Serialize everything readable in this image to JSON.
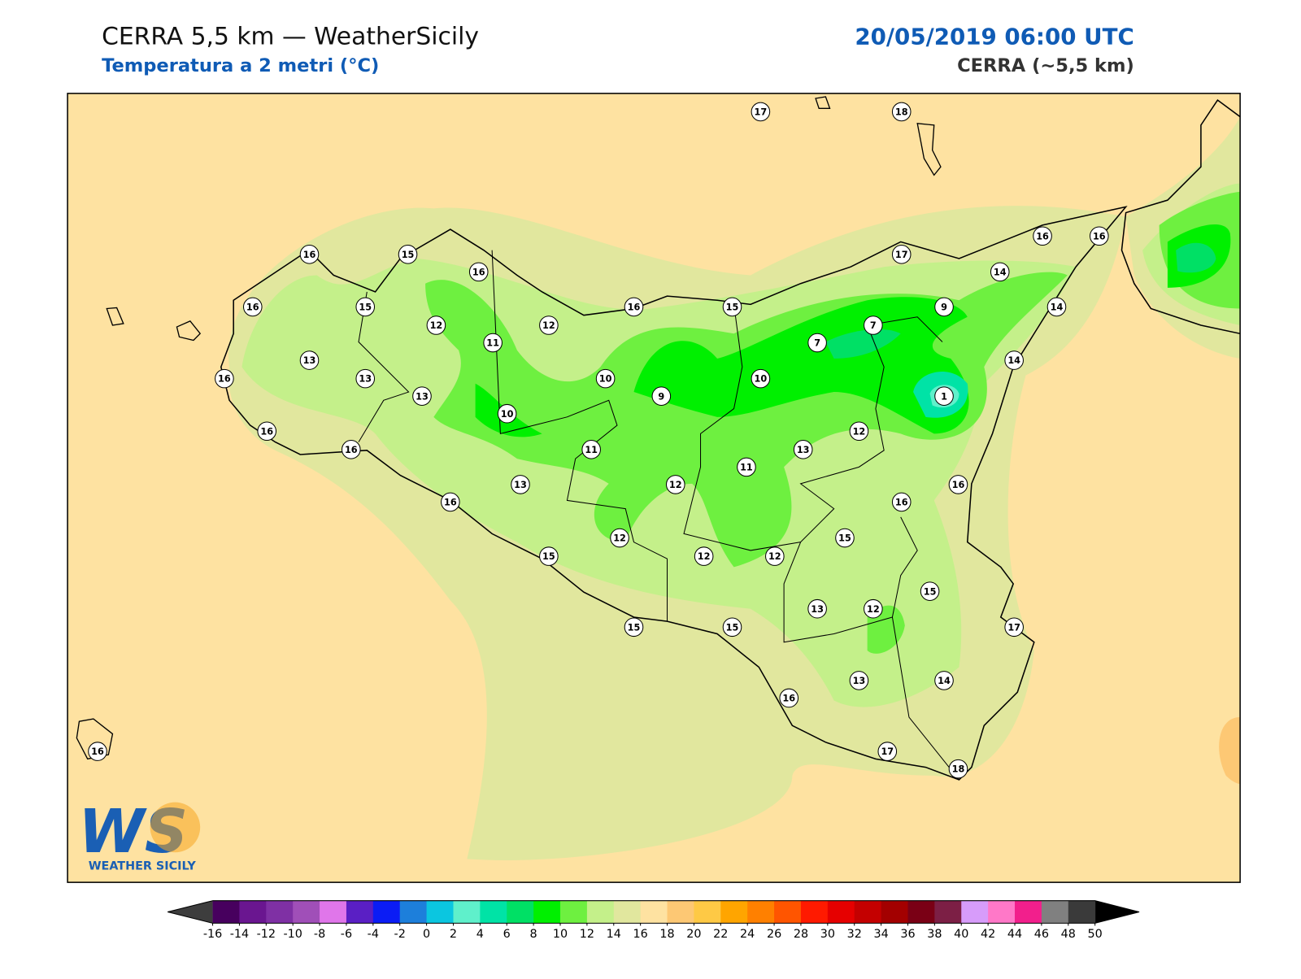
{
  "header": {
    "title": "CERRA 5,5 km — WeatherSicily",
    "subtitle": "Temperatura a 2 metri (°C)",
    "date": "20/05/2019 06:00 UTC",
    "model": "CERRA (~5,5 km)"
  },
  "map": {
    "stations": [
      17,
      18,
      16,
      15,
      16,
      17,
      16,
      16,
      14,
      16,
      15,
      16,
      15,
      9,
      14,
      12,
      12,
      7,
      11,
      7,
      13,
      14,
      16,
      13,
      10,
      10,
      13,
      9,
      1,
      10,
      16,
      12,
      16,
      11,
      13,
      11,
      13,
      12,
      16,
      16,
      16,
      15,
      12,
      15,
      12,
      12,
      15,
      13,
      12,
      15,
      15,
      17,
      13,
      14,
      16,
      17,
      18,
      16
    ]
  },
  "logo": {
    "mark": "WS",
    "text": "WEATHER SICILY"
  },
  "colorbar": {
    "ticks": [
      -16,
      -14,
      -12,
      -10,
      -8,
      -6,
      -4,
      -2,
      0,
      2,
      4,
      6,
      8,
      10,
      12,
      14,
      16,
      18,
      20,
      22,
      24,
      26,
      28,
      30,
      32,
      34,
      36,
      38,
      40,
      42,
      44,
      46,
      48,
      50
    ],
    "colors": [
      "#47005e",
      "#6a1690",
      "#7f30a4",
      "#a04fb8",
      "#e076ea",
      "#5a1fc4",
      "#0b1cf5",
      "#1d7fdb",
      "#0bc6e0",
      "#5ff0cb",
      "#00e3a6",
      "#00e065",
      "#00f000",
      "#6ef040",
      "#c4f08a",
      "#e1e79e",
      "#fee2a1",
      "#fdc874",
      "#fec945",
      "#ffa500",
      "#ff8000",
      "#ff5500",
      "#ff1a00",
      "#e60000",
      "#c40000",
      "#a30000",
      "#7a0015",
      "#7c1f45",
      "#d79cfa",
      "#ff78c8",
      "#f21f8c",
      "#808080",
      "#3a3a3a"
    ],
    "under_color": "#3d3d3d",
    "over_color": "#000000"
  }
}
